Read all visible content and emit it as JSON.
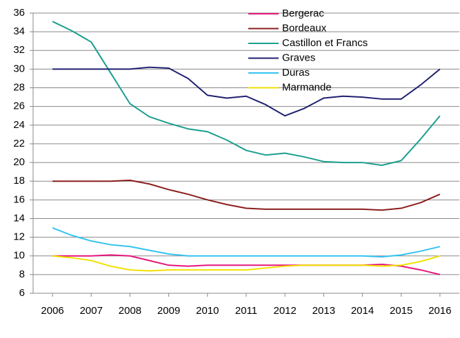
{
  "chart_data": {
    "type": "line",
    "x": [
      2006,
      2006.5,
      2007,
      2007.5,
      2008,
      2008.5,
      2009,
      2009.5,
      2010,
      2010.5,
      2011,
      2011.5,
      2012,
      2012.5,
      2013,
      2013.5,
      2014,
      2014.5,
      2015,
      2015.5,
      2016
    ],
    "series": [
      {
        "name": "Bergerac",
        "color": "#e6157a",
        "values": [
          10,
          10,
          10,
          10.1,
          10,
          9.5,
          9,
          8.9,
          9,
          9,
          9,
          9,
          9,
          9,
          9,
          9,
          9,
          9.1,
          8.9,
          8.5,
          8
        ]
      },
      {
        "name": "Bordeaux",
        "color": "#8b1c1c",
        "values": [
          18,
          18,
          18,
          18,
          18.1,
          17.7,
          17.1,
          16.6,
          16,
          15.5,
          15.1,
          15,
          15,
          15,
          15,
          15,
          15,
          14.9,
          15.1,
          15.7,
          16.6
        ]
      },
      {
        "name": "Castillon et Francs",
        "color": "#1a9e8f",
        "values": [
          35.1,
          34.1,
          32.9,
          29.6,
          26.3,
          24.9,
          24.2,
          23.6,
          23.3,
          22.4,
          21.3,
          20.8,
          21,
          20.6,
          20.1,
          20,
          20,
          19.7,
          20.2,
          22.5,
          25
        ]
      },
      {
        "name": "Graves",
        "color": "#1f1f70",
        "values": [
          30,
          30,
          30,
          30,
          30,
          30.2,
          30.1,
          29,
          27.2,
          26.9,
          27.1,
          26.2,
          25,
          25.8,
          26.9,
          27.1,
          27,
          26.8,
          26.8,
          28.3,
          30
        ]
      },
      {
        "name": "Duras",
        "color": "#33c3f0",
        "values": [
          13,
          12.2,
          11.6,
          11.2,
          11,
          10.6,
          10.2,
          10,
          10,
          10,
          10,
          10,
          10,
          10,
          10,
          10,
          10,
          9.9,
          10.1,
          10.5,
          11
        ]
      },
      {
        "name": "Marmande",
        "color": "#f2e100",
        "values": [
          10,
          9.8,
          9.5,
          8.9,
          8.5,
          8.4,
          8.5,
          8.5,
          8.5,
          8.5,
          8.5,
          8.7,
          8.9,
          9,
          9,
          9,
          9,
          8.9,
          9,
          9.4,
          10
        ]
      }
    ],
    "xlim": [
      2005.5,
      2016.5
    ],
    "xticks": [
      2006,
      2007,
      2008,
      2009,
      2010,
      2011,
      2012,
      2013,
      2014,
      2015,
      2016
    ],
    "ylim": [
      6,
      36
    ],
    "yticks": [
      6,
      8,
      10,
      12,
      14,
      16,
      18,
      20,
      22,
      24,
      26,
      28,
      30,
      32,
      34,
      36
    ],
    "grid": true,
    "legend": "top"
  }
}
